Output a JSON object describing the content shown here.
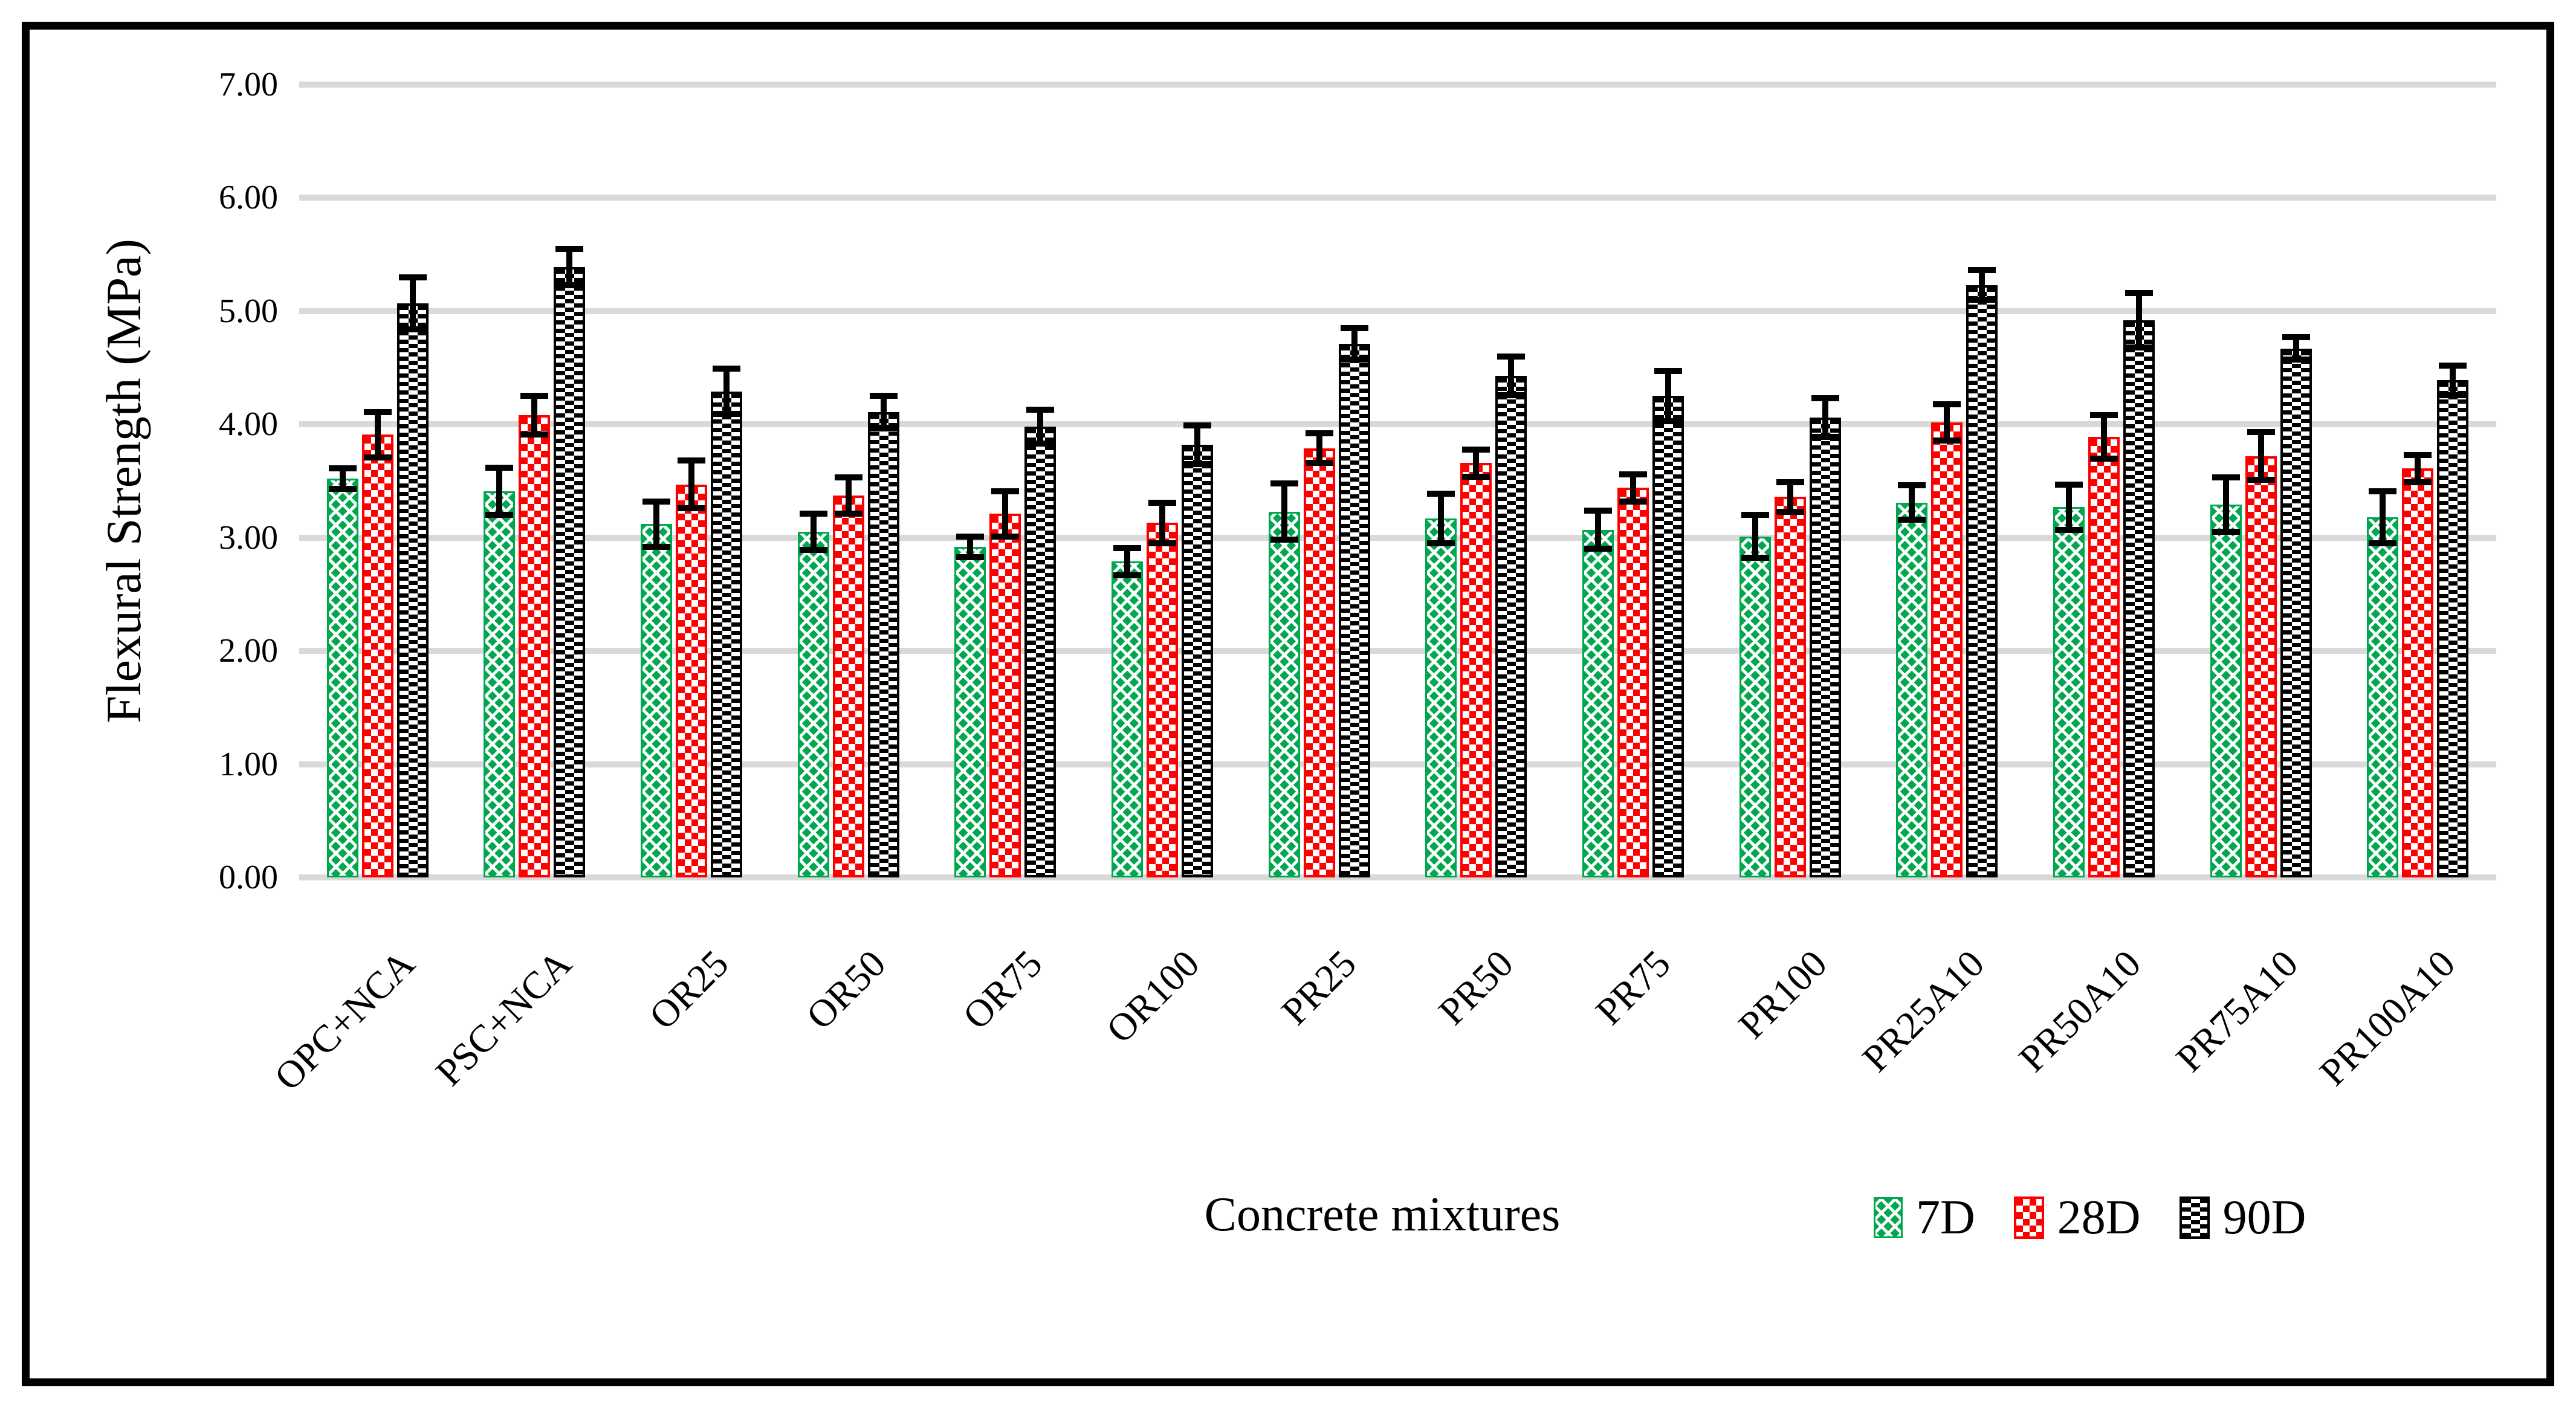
{
  "chart_data": {
    "type": "bar",
    "title": "",
    "xlabel": "Concrete mixtures",
    "ylabel": "Flexural Strength (MPa)",
    "ylim": [
      0,
      7
    ],
    "ytick_step": 1,
    "yticks": [
      "0.00",
      "1.00",
      "2.00",
      "3.00",
      "4.00",
      "5.00",
      "6.00",
      "7.00"
    ],
    "grid": true,
    "gridline_color": "#D9D9D9",
    "background_color": "#FFFFFF",
    "frame_color": "#000000",
    "legend_position": "bottom-right",
    "error_bars": true,
    "categories": [
      "OPC+NCA",
      "PSC+NCA",
      "OR25",
      "OR50",
      "OR75",
      "OR100",
      "PR25",
      "PR50",
      "PR75",
      "PR100",
      "PR25A10",
      "PR50A10",
      "PR75A10",
      "PR100A10"
    ],
    "series": [
      {
        "name": "7D",
        "color": "#00A74E",
        "pattern": "diamond-lattice",
        "values": [
          3.52,
          3.41,
          3.12,
          3.05,
          2.92,
          2.79,
          3.23,
          3.17,
          3.07,
          3.01,
          3.31,
          3.27,
          3.29,
          3.18
        ],
        "errors": [
          0.09,
          0.21,
          0.2,
          0.16,
          0.09,
          0.12,
          0.25,
          0.22,
          0.17,
          0.19,
          0.15,
          0.2,
          0.24,
          0.23
        ]
      },
      {
        "name": "28D",
        "color": "#FF0000",
        "pattern": "checkerboard",
        "values": [
          3.91,
          4.08,
          3.47,
          3.37,
          3.21,
          3.13,
          3.79,
          3.66,
          3.44,
          3.36,
          4.02,
          3.89,
          3.72,
          3.61
        ],
        "errors": [
          0.2,
          0.17,
          0.21,
          0.16,
          0.2,
          0.18,
          0.13,
          0.12,
          0.12,
          0.13,
          0.16,
          0.19,
          0.21,
          0.12
        ]
      },
      {
        "name": "90D",
        "color": "#000000",
        "pattern": "dash-brick",
        "values": [
          5.07,
          5.39,
          4.29,
          4.11,
          3.98,
          3.82,
          4.71,
          4.43,
          4.25,
          4.06,
          5.23,
          4.92,
          4.67,
          4.39
        ],
        "errors": [
          0.23,
          0.16,
          0.2,
          0.14,
          0.15,
          0.17,
          0.14,
          0.17,
          0.22,
          0.17,
          0.13,
          0.24,
          0.1,
          0.13
        ]
      }
    ]
  }
}
